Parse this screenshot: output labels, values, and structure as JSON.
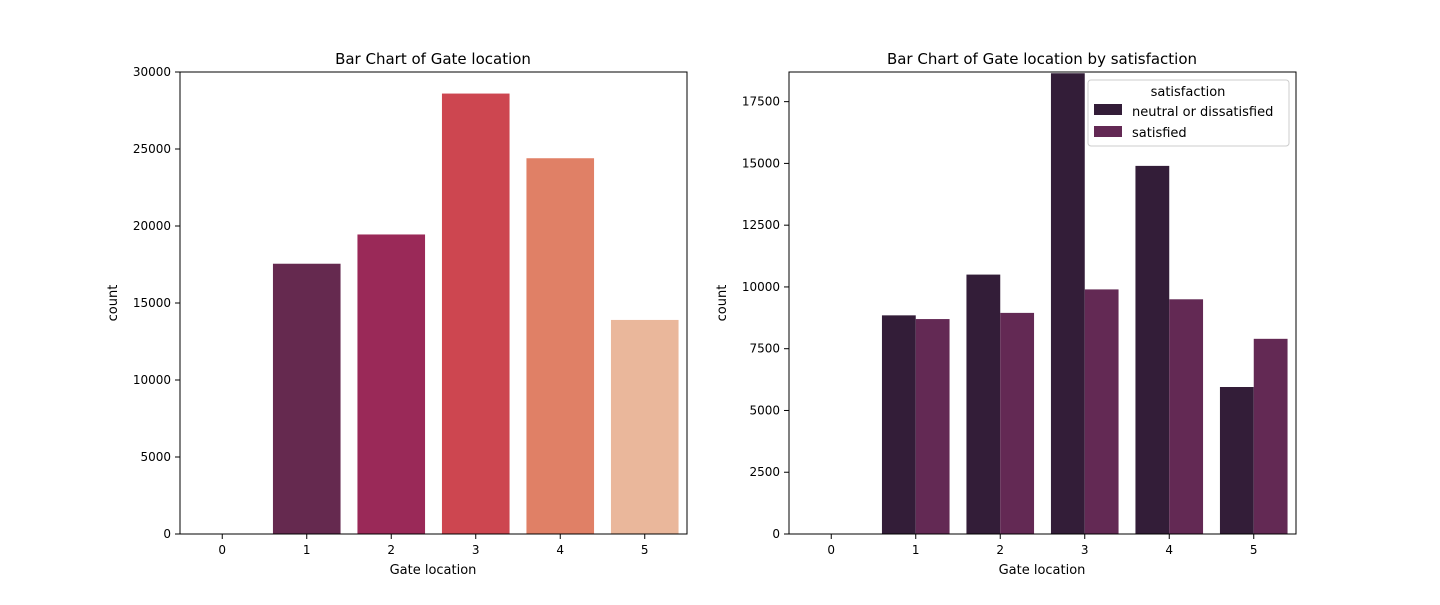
{
  "chart_data": [
    {
      "type": "bar",
      "title": "Bar Chart of Gate location",
      "xlabel": "Gate location",
      "ylabel": "count",
      "categories": [
        "0",
        "1",
        "2",
        "3",
        "4",
        "5"
      ],
      "values": [
        0,
        17550,
        19450,
        28600,
        24400,
        13900
      ],
      "bar_colors": [
        "#f5d0b5",
        "#65294f",
        "#9a2958",
        "#cd4650",
        "#e08066",
        "#eab79b"
      ],
      "ylim": [
        0,
        30000
      ],
      "yticks": [
        0,
        5000,
        10000,
        15000,
        20000,
        25000,
        30000
      ],
      "ytick_labels": [
        "0",
        "5000",
        "10000",
        "15000",
        "20000",
        "25000",
        "30000"
      ],
      "grid": false
    },
    {
      "type": "bar",
      "title": "Bar Chart of Gate location by satisfaction",
      "xlabel": "Gate location",
      "ylabel": "count",
      "categories": [
        "0",
        "1",
        "2",
        "3",
        "4",
        "5"
      ],
      "series": [
        {
          "name": "neutral or dissatisfied",
          "color": "#331d38",
          "values": [
            0,
            8850,
            10500,
            18650,
            14900,
            5950
          ]
        },
        {
          "name": "satisfied",
          "color": "#632954",
          "values": [
            0,
            8700,
            8950,
            9900,
            9500,
            7900
          ]
        }
      ],
      "legend": {
        "title": "satisfaction",
        "placement": "top-right"
      },
      "ylim": [
        0,
        18700
      ],
      "yticks": [
        0,
        2500,
        5000,
        7500,
        10000,
        12500,
        15000,
        17500
      ],
      "ytick_labels": [
        "0",
        "2500",
        "5000",
        "7500",
        "10000",
        "12500",
        "15000",
        "17500"
      ],
      "grid": false
    }
  ]
}
